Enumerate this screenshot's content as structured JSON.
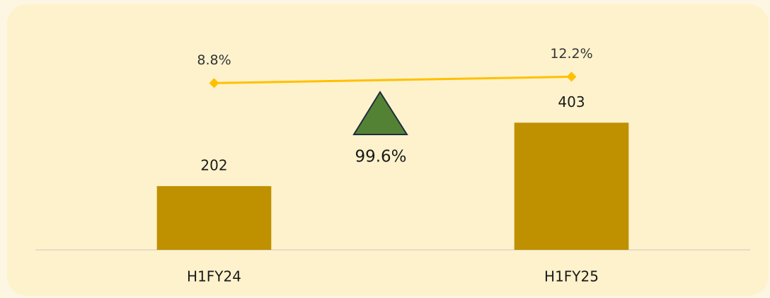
{
  "chart_data": {
    "type": "bar",
    "categories": [
      "H1FY24",
      "H1FY25"
    ],
    "series": [
      {
        "type": "bar",
        "color": "#bf9000",
        "values": [
          202,
          403
        ]
      },
      {
        "type": "line",
        "axis": "y2",
        "color": "#ffc000",
        "values": [
          8.8,
          12.2
        ],
        "value_labels": [
          "8.8%",
          "12.2%"
        ]
      }
    ],
    "ylim": [
      0,
      720
    ],
    "y2lim": [
      -80,
      41
    ],
    "annotation": "99.6%"
  }
}
